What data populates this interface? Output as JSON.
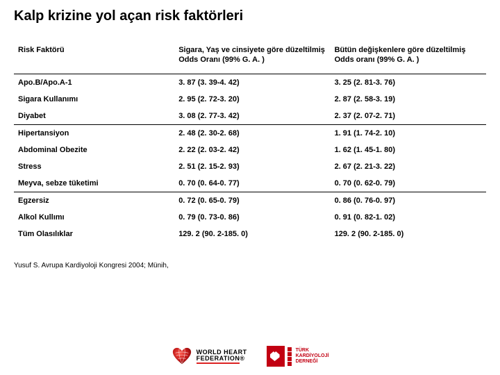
{
  "title": "Kalp krizine yol açan risk faktörleri",
  "table": {
    "headers": [
      "Risk Faktörü",
      "Sigara,  Yaş ve cinsiyete göre düzeltilmiş Odds Oranı (99% G. A. )",
      "Bütün değişkenlere göre düzeltilmiş Odds oranı (99% G. A. )"
    ],
    "groups": [
      [
        {
          "factor": "Apo.B/Apo.A-1",
          "or1": "3. 87 (3. 39-4. 42)",
          "or2": "3. 25 (2. 81-3. 76)"
        },
        {
          "factor": "Sigara Kullanımı",
          "or1": "2. 95 (2. 72-3. 20)",
          "or2": "2. 87 (2. 58-3. 19)"
        },
        {
          "factor": "Diyabet",
          "or1": "3. 08 (2. 77-3. 42)",
          "or2": "2. 37 (2. 07-2. 71)"
        }
      ],
      [
        {
          "factor": "Hipertansiyon",
          "or1": "2. 48 (2. 30-2. 68)",
          "or2": "1. 91 (1. 74-2. 10)"
        },
        {
          "factor": "Abdominal Obezite",
          "or1": "2. 22 (2. 03-2. 42)",
          "or2": "1. 62 (1. 45-1. 80)"
        },
        {
          "factor": "Stress",
          "or1": "2. 51 (2. 15-2. 93)",
          "or2": "2. 67 (2. 21-3. 22)"
        },
        {
          "factor": "Meyva, sebze tüketimi",
          "or1": "0. 70 (0. 64-0. 77)",
          "or2": "0. 70 (0. 62-0. 79)"
        }
      ],
      [
        {
          "factor": "Egzersiz",
          "or1": "0. 72 (0. 65-0. 79)",
          "or2": "0. 86 (0. 76-0. 97)"
        },
        {
          "factor": "Alkol Kullımı",
          "or1": "0. 79 (0. 73-0. 86)",
          "or2": "0. 91 (0. 82-1. 02)"
        },
        {
          "factor": "Tüm Olasılıklar",
          "or1": "129. 2 (90. 2-185. 0)",
          "or2": "129. 2 (90. 2-185. 0)"
        }
      ]
    ]
  },
  "citation": "Yusuf S. Avrupa Kardiyoloji Kongresi 2004; Münih,",
  "logos": {
    "whf": {
      "line1": "WORLD HEART",
      "line2": "FEDERATION",
      "reg": "®"
    },
    "tkd": {
      "line1": "TÜRK",
      "line2": "KARDİYOLOJİ",
      "line3": "DERNEĞİ"
    }
  },
  "colors": {
    "text": "#000000",
    "rule": "#000000",
    "whf_red": "#d22",
    "tkd_red": "#c20012",
    "background": "#ffffff"
  },
  "fontsizes": {
    "title": 20,
    "cell": 11,
    "citation": 10,
    "whf": 9,
    "tkd": 7
  }
}
